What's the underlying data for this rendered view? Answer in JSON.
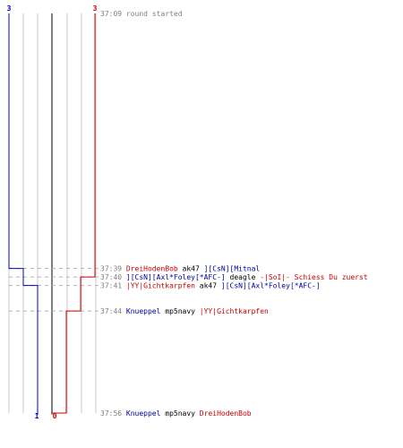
{
  "chart_data": {
    "type": "line",
    "teams": [
      {
        "name": "blue",
        "color": "#0000c8",
        "start_score": "3",
        "end_score": "1",
        "steps": [
          "37:09",
          "37:39",
          "37:41",
          "37:56"
        ],
        "values": [
          3,
          2,
          1,
          1
        ]
      },
      {
        "name": "red",
        "color": "#c80000",
        "start_score": "3",
        "end_score": "0",
        "steps": [
          "37:09",
          "37:40",
          "37:44",
          "37:56"
        ],
        "values": [
          3,
          2,
          1,
          0
        ]
      }
    ],
    "grid": true,
    "events": [
      {
        "time": "37:09",
        "parts": [
          {
            "text": "round started",
            "color": "#808080"
          }
        ]
      },
      {
        "time": "37:39",
        "parts": [
          {
            "text": "DreiHodenBob",
            "color": "#c80000"
          },
          {
            "text": " ak47 ",
            "color": "#000000"
          },
          {
            "text": "][CsN][Mitnal",
            "color": "#0000a0"
          }
        ]
      },
      {
        "time": "37:40",
        "parts": [
          {
            "text": "][CsN][Axl*Foley[*AFC-]",
            "color": "#0000a0"
          },
          {
            "text": " deagle ",
            "color": "#000000"
          },
          {
            "text": "-|SoI|- Schiess Du zuerst",
            "color": "#c80000"
          }
        ]
      },
      {
        "time": "37:41",
        "parts": [
          {
            "text": "|YY|Gichtkarpfen",
            "color": "#c80000"
          },
          {
            "text": " ak47 ",
            "color": "#000000"
          },
          {
            "text": "][CsN][Axl*Foley[*AFC-]",
            "color": "#0000a0"
          }
        ]
      },
      {
        "time": "37:44",
        "parts": [
          {
            "text": "Knueppel",
            "color": "#0000a0"
          },
          {
            "text": " mp5navy ",
            "color": "#000000"
          },
          {
            "text": "|YY|Gichtkarpfen",
            "color": "#c80000"
          }
        ]
      },
      {
        "time": "37:56",
        "parts": [
          {
            "text": "Knueppel",
            "color": "#0000a0"
          },
          {
            "text": " mp5navy ",
            "color": "#000000"
          },
          {
            "text": "DreiHodenBob",
            "color": "#c80000"
          }
        ]
      }
    ]
  }
}
